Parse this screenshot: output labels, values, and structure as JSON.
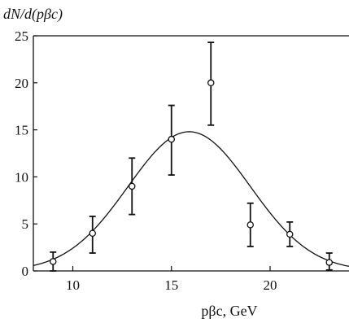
{
  "chart_data": {
    "type": "scatter",
    "ylabel": "dN/d(pβc)",
    "xlabel": "pβc, GeV",
    "xlim": [
      8,
      24
    ],
    "ylim": [
      0,
      25
    ],
    "x_ticks": [
      10,
      15,
      20
    ],
    "y_ticks": [
      0,
      5,
      10,
      15,
      20,
      25
    ],
    "x_tick_labels": [
      "10",
      "15",
      "20"
    ],
    "y_tick_labels": [
      "0",
      "5",
      "10",
      "15",
      "20",
      "25"
    ],
    "grid": false,
    "series": [
      {
        "marker": "open-circle",
        "x": [
          9,
          11,
          13,
          15,
          17,
          19,
          21,
          23
        ],
        "y": [
          1.0,
          4.0,
          9.0,
          14.0,
          20.0,
          4.9,
          3.9,
          0.9
        ],
        "y_err_low": [
          1.0,
          2.1,
          3.0,
          3.8,
          4.5,
          2.3,
          1.3,
          0.8
        ],
        "y_err_high": [
          1.0,
          1.8,
          3.0,
          3.6,
          4.3,
          2.3,
          1.3,
          1.0
        ]
      }
    ],
    "fit_curve": {
      "shape": "gaussian",
      "peak": 14.8,
      "mean": 15.9,
      "sigma": 3.1,
      "x_range": [
        8,
        24
      ]
    }
  }
}
